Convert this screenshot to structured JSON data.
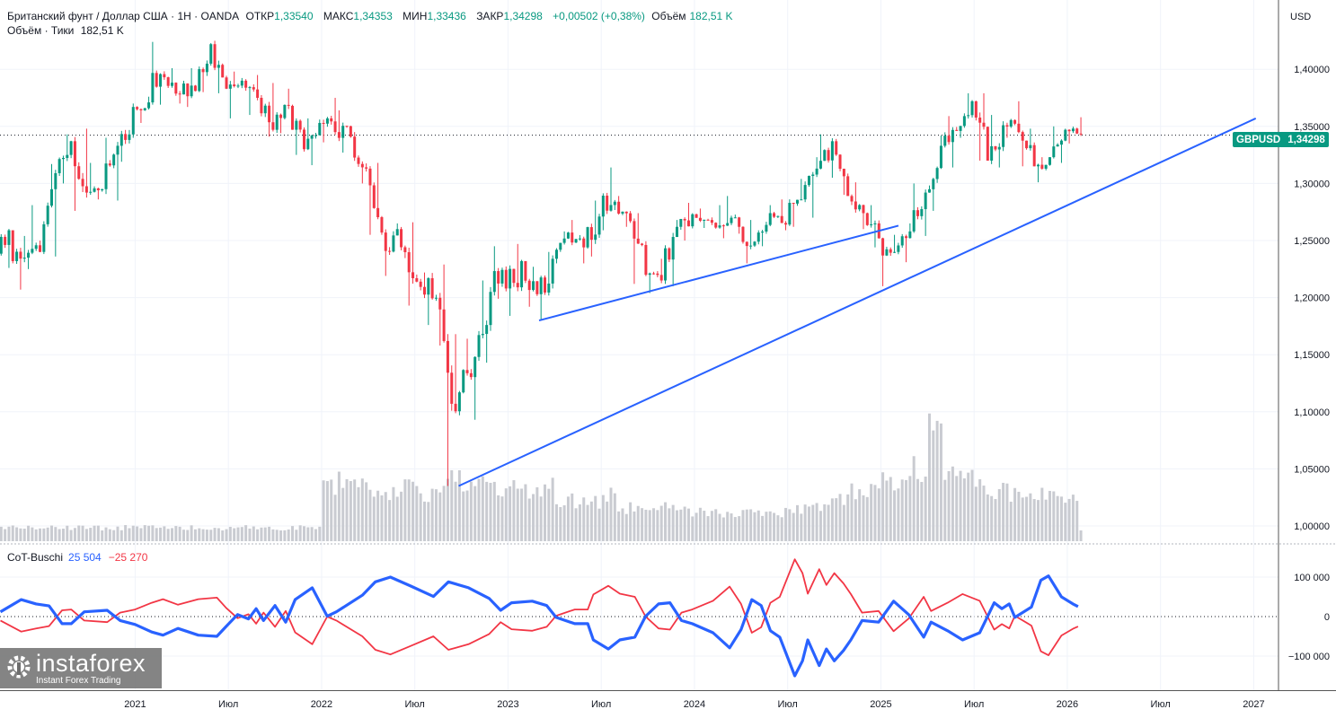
{
  "header": {
    "symbol_line": "Британский фунт / Доллар США · 1H · OANDA",
    "open_label": "ОТКР",
    "open": "1,33540",
    "high_label": "МАКС",
    "high": "1,34353",
    "low_label": "МИН",
    "low": "1,33436",
    "close_label": "ЗАКР",
    "close": "1,34298",
    "change": "+0,00502 (+0,38%)",
    "volume_label": "Объём",
    "volume": "182,51 K",
    "volume_line_label": "Объём · Тики",
    "volume_line_value": "182,51 K"
  },
  "currency": "USD",
  "price_tag": {
    "symbol": "GBPUSD",
    "price": "1,34298"
  },
  "indicator": {
    "name": "CoT-Buschi",
    "value_blue": "25 504",
    "value_red": "−25 270"
  },
  "logo": {
    "name": "instaforex",
    "tagline": "Instant Forex Trading"
  },
  "colors": {
    "up": "#089981",
    "down": "#f23645",
    "trendline": "#2962ff",
    "cot_blue": "#2962ff",
    "cot_red": "#f23645",
    "volume": "#c9cbd1"
  },
  "chart_data": [
    {
      "type": "candlestick",
      "symbol": "GBPUSD",
      "last_price": 1.34298,
      "ylim": [
        0.98,
        1.44
      ],
      "y_ticks": [
        "1,40000",
        "1,35000",
        "1,30000",
        "1,25000",
        "1,20000",
        "1,15000",
        "1,10000",
        "1,05000",
        "1,00000"
      ],
      "x_ticks": [
        {
          "date": "2021-01-01",
          "label": "2021"
        },
        {
          "date": "2021-07-01",
          "label": "Июл"
        },
        {
          "date": "2022-01-01",
          "label": "2022"
        },
        {
          "date": "2022-07-01",
          "label": "Июл"
        },
        {
          "date": "2023-01-01",
          "label": "2023"
        },
        {
          "date": "2023-07-01",
          "label": "Июл"
        },
        {
          "date": "2024-01-01",
          "label": "2024"
        },
        {
          "date": "2024-07-01",
          "label": "Июл"
        },
        {
          "date": "2025-01-01",
          "label": "2025"
        },
        {
          "date": "2025-07-01",
          "label": "Июл"
        },
        {
          "date": "2026-01-01",
          "label": "2026"
        },
        {
          "date": "2026-07-01",
          "label": "Июл"
        },
        {
          "date": "2027-01-01",
          "label": "2027"
        }
      ],
      "xlim": [
        "2020-04-10",
        "2027-02-20"
      ],
      "grid": true,
      "monthly_ohlc": [
        [
          "2020-04",
          1.241,
          1.265,
          1.226,
          1.259
        ],
        [
          "2020-05",
          1.259,
          1.254,
          1.207,
          1.235
        ],
        [
          "2020-06",
          1.235,
          1.281,
          1.225,
          1.24
        ],
        [
          "2020-07",
          1.24,
          1.317,
          1.236,
          1.309
        ],
        [
          "2020-08",
          1.309,
          1.343,
          1.3,
          1.337
        ],
        [
          "2020-09",
          1.337,
          1.348,
          1.276,
          1.292
        ],
        [
          "2020-10",
          1.292,
          1.318,
          1.286,
          1.295
        ],
        [
          "2020-11",
          1.295,
          1.34,
          1.285,
          1.333
        ],
        [
          "2020-12",
          1.333,
          1.37,
          1.319,
          1.367
        ],
        [
          "2021-01",
          1.367,
          1.376,
          1.353,
          1.371
        ],
        [
          "2021-02",
          1.371,
          1.424,
          1.369,
          1.393
        ],
        [
          "2021-03",
          1.393,
          1.401,
          1.37,
          1.378
        ],
        [
          "2021-04",
          1.378,
          1.401,
          1.367,
          1.381
        ],
        [
          "2021-05",
          1.381,
          1.423,
          1.38,
          1.422
        ],
        [
          "2021-06",
          1.422,
          1.425,
          1.379,
          1.383
        ],
        [
          "2021-07",
          1.383,
          1.398,
          1.357,
          1.39
        ],
        [
          "2021-08",
          1.39,
          1.395,
          1.36,
          1.375
        ],
        [
          "2021-09",
          1.375,
          1.388,
          1.341,
          1.347
        ],
        [
          "2021-10",
          1.347,
          1.383,
          1.344,
          1.368
        ],
        [
          "2021-11",
          1.368,
          1.369,
          1.325,
          1.33
        ],
        [
          "2021-12",
          1.33,
          1.357,
          1.316,
          1.353
        ],
        [
          "2022-01",
          1.353,
          1.375,
          1.336,
          1.345
        ],
        [
          "2022-02",
          1.345,
          1.364,
          1.327,
          1.341
        ],
        [
          "2022-03",
          1.341,
          1.345,
          1.3,
          1.313
        ],
        [
          "2022-04",
          1.313,
          1.318,
          1.255,
          1.257
        ],
        [
          "2022-05",
          1.257,
          1.265,
          1.219,
          1.26
        ],
        [
          "2022-06",
          1.26,
          1.266,
          1.193,
          1.217
        ],
        [
          "2022-07",
          1.217,
          1.222,
          1.176,
          1.217
        ],
        [
          "2022-08",
          1.217,
          1.229,
          1.158,
          1.162
        ],
        [
          "2022-09",
          1.162,
          1.168,
          1.035,
          1.117
        ],
        [
          "2022-10",
          1.117,
          1.164,
          1.093,
          1.148
        ],
        [
          "2022-11",
          1.148,
          1.215,
          1.143,
          1.205
        ],
        [
          "2022-12",
          1.205,
          1.245,
          1.199,
          1.208
        ],
        [
          "2023-01",
          1.208,
          1.247,
          1.184,
          1.232
        ],
        [
          "2023-02",
          1.232,
          1.227,
          1.192,
          1.203
        ],
        [
          "2023-03",
          1.203,
          1.24,
          1.18,
          1.234
        ],
        [
          "2023-04",
          1.234,
          1.258,
          1.23,
          1.257
        ],
        [
          "2023-05",
          1.257,
          1.268,
          1.23,
          1.244
        ],
        [
          "2023-06",
          1.244,
          1.285,
          1.236,
          1.271
        ],
        [
          "2023-07",
          1.271,
          1.314,
          1.259,
          1.284
        ],
        [
          "2023-08",
          1.284,
          1.289,
          1.262,
          1.267
        ],
        [
          "2023-09",
          1.267,
          1.274,
          1.212,
          1.22
        ],
        [
          "2023-10",
          1.22,
          1.234,
          1.204,
          1.215
        ],
        [
          "2023-11",
          1.215,
          1.268,
          1.21,
          1.262
        ],
        [
          "2023-12",
          1.262,
          1.283,
          1.25,
          1.273
        ],
        [
          "2024-01",
          1.273,
          1.278,
          1.261,
          1.268
        ],
        [
          "2024-02",
          1.268,
          1.281,
          1.252,
          1.263
        ],
        [
          "2024-03",
          1.263,
          1.289,
          1.256,
          1.262
        ],
        [
          "2024-04",
          1.262,
          1.268,
          1.23,
          1.249
        ],
        [
          "2024-05",
          1.249,
          1.281,
          1.245,
          1.274
        ],
        [
          "2024-06",
          1.274,
          1.286,
          1.259,
          1.264
        ],
        [
          "2024-07",
          1.264,
          1.304,
          1.262,
          1.286
        ],
        [
          "2024-08",
          1.286,
          1.323,
          1.27,
          1.313
        ],
        [
          "2024-09",
          1.313,
          1.343,
          1.305,
          1.337
        ],
        [
          "2024-10",
          1.337,
          1.339,
          1.29,
          1.289
        ],
        [
          "2024-11",
          1.289,
          1.301,
          1.26,
          1.274
        ],
        [
          "2024-12",
          1.274,
          1.281,
          1.244,
          1.252
        ],
        [
          "2025-01",
          1.252,
          1.255,
          1.21,
          1.24
        ],
        [
          "2025-02",
          1.24,
          1.265,
          1.231,
          1.258
        ],
        [
          "2025-03",
          1.258,
          1.3,
          1.254,
          1.292
        ],
        [
          "2025-04",
          1.292,
          1.342,
          1.276,
          1.333
        ],
        [
          "2025-05",
          1.333,
          1.359,
          1.314,
          1.346
        ],
        [
          "2025-06",
          1.346,
          1.379,
          1.34,
          1.372
        ],
        [
          "2025-07",
          1.372,
          1.379,
          1.32,
          1.32
        ],
        [
          "2025-08",
          1.32,
          1.36,
          1.314,
          1.351
        ],
        [
          "2025-09",
          1.351,
          1.372,
          1.34,
          1.345
        ],
        [
          "2025-10",
          1.345,
          1.348,
          1.315,
          1.315
        ],
        [
          "2025-11",
          1.315,
          1.323,
          1.301,
          1.323
        ],
        [
          "2025-12",
          1.323,
          1.35,
          1.318,
          1.347
        ],
        [
          "2026-01",
          1.347,
          1.358,
          1.335,
          1.34298
        ]
      ],
      "volume_relative": {
        "months_before_2022": 10,
        "from_2022": [
          40,
          45,
          42,
          40,
          38,
          40,
          36,
          38,
          50,
          45,
          42,
          38,
          38,
          36,
          40,
          30,
          30,
          28,
          35,
          25,
          26,
          24,
          25,
          22,
          22,
          22,
          20,
          22,
          20,
          22,
          25,
          26,
          28,
          30,
          38,
          40,
          45,
          42,
          55,
          98,
          48,
          45,
          42,
          38,
          36,
          35,
          36,
          34,
          30
        ]
      },
      "trendlines": [
        {
          "from": [
            "2023-03-01",
            1.18
          ],
          "to": [
            "2025-02-05",
            1.263
          ]
        },
        {
          "from": [
            "2022-09-26",
            1.035
          ],
          "to": [
            "2027-01-05",
            1.357
          ]
        }
      ]
    },
    {
      "type": "line",
      "name": "CoT-Buschi",
      "ylim": [
        -170000,
        190000
      ],
      "y_ticks": [
        "100 000",
        "0",
        "−100 000"
      ],
      "zero_line": "dotted",
      "dates": [
        "2020-04-11",
        "2020-05-21",
        "2020-06-20",
        "2020-07-15",
        "2020-08-10",
        "2020-08-28",
        "2020-09-23",
        "2020-11-07",
        "2020-12-02",
        "2021-01-01",
        "2021-02-03",
        "2021-02-25",
        "2021-03-24",
        "2021-05-03",
        "2021-06-09",
        "2021-06-27",
        "2021-07-19",
        "2021-08-10",
        "2021-08-25",
        "2021-09-09",
        "2021-10-01",
        "2021-10-22",
        "2021-11-10",
        "2021-12-13",
        "2022-01-12",
        "2022-01-30",
        "2022-03-20",
        "2022-04-15",
        "2022-05-14",
        "2022-06-24",
        "2022-08-07",
        "2022-09-06",
        "2022-10-15",
        "2022-11-25",
        "2022-12-17",
        "2023-01-08",
        "2023-02-18",
        "2023-03-16",
        "2023-04-04",
        "2023-05-10",
        "2023-06-05",
        "2023-06-16",
        "2023-07-15",
        "2023-08-07",
        "2023-09-06",
        "2023-09-27",
        "2023-10-22",
        "2023-11-14",
        "2023-12-06",
        "2023-12-27",
        "2024-02-07",
        "2024-03-09",
        "2024-04-01",
        "2024-04-22",
        "2024-05-10",
        "2024-05-28",
        "2024-06-16",
        "2024-07-15",
        "2024-07-30",
        "2024-08-10",
        "2024-09-02",
        "2024-09-16",
        "2024-10-01",
        "2024-10-19",
        "2024-11-03",
        "2024-11-25",
        "2024-12-27",
        "2025-01-26",
        "2025-02-25",
        "2025-03-24",
        "2025-04-08",
        "2025-05-10",
        "2025-06-09",
        "2025-07-12",
        "2025-08-10",
        "2025-08-25",
        "2025-09-09",
        "2025-09-20",
        "2025-10-22",
        "2025-11-10",
        "2025-11-25",
        "2025-12-20",
        "2026-01-12",
        "2026-01-22"
      ],
      "series": [
        {
          "color": "#2962ff",
          "values": [
            12000,
            43000,
            32000,
            27000,
            -18000,
            -18000,
            12000,
            16000,
            -10000,
            -20000,
            -39000,
            -47000,
            -30000,
            -47000,
            -50000,
            -25000,
            5000,
            -6000,
            20000,
            -10000,
            28000,
            -14000,
            43000,
            73000,
            1000,
            12000,
            54000,
            88000,
            100000,
            77000,
            51000,
            88000,
            73000,
            46000,
            16000,
            35000,
            39000,
            28000,
            -2000,
            -18000,
            -18000,
            -59000,
            -82000,
            -59000,
            -52000,
            1000,
            32000,
            35000,
            -10000,
            -18000,
            -41000,
            -79000,
            -33000,
            43000,
            28000,
            -36000,
            -52000,
            -150000,
            -112000,
            -59000,
            -124000,
            -82000,
            -112000,
            -86000,
            -59000,
            -10000,
            -14000,
            39000,
            5000,
            -52000,
            -14000,
            -36000,
            -59000,
            -41000,
            35000,
            20000,
            32000,
            -2000,
            24000,
            92000,
            103000,
            50000,
            32000,
            25504
          ]
        },
        {
          "color": "#f23645",
          "values": [
            -10000,
            -38000,
            -30000,
            -24000,
            16000,
            18000,
            -10000,
            -14000,
            10000,
            18000,
            35000,
            44000,
            30000,
            44000,
            48000,
            22000,
            -4000,
            6000,
            -18000,
            10000,
            -26000,
            14000,
            -40000,
            -70000,
            0,
            -10000,
            -50000,
            -84000,
            -96000,
            -74000,
            -50000,
            -84000,
            -70000,
            -44000,
            -14000,
            -32000,
            -36000,
            -26000,
            2000,
            18000,
            18000,
            56000,
            78000,
            58000,
            50000,
            0,
            -30000,
            -33000,
            10000,
            18000,
            40000,
            76000,
            32000,
            -41000,
            -27000,
            35000,
            50000,
            145000,
            110000,
            58000,
            120000,
            80000,
            110000,
            84000,
            57000,
            10000,
            14000,
            -37000,
            -5000,
            50000,
            14000,
            35000,
            57000,
            40000,
            -33000,
            -19000,
            -30000,
            2000,
            -23000,
            -88000,
            -98000,
            -48000,
            -31000,
            -25270
          ]
        }
      ]
    }
  ]
}
